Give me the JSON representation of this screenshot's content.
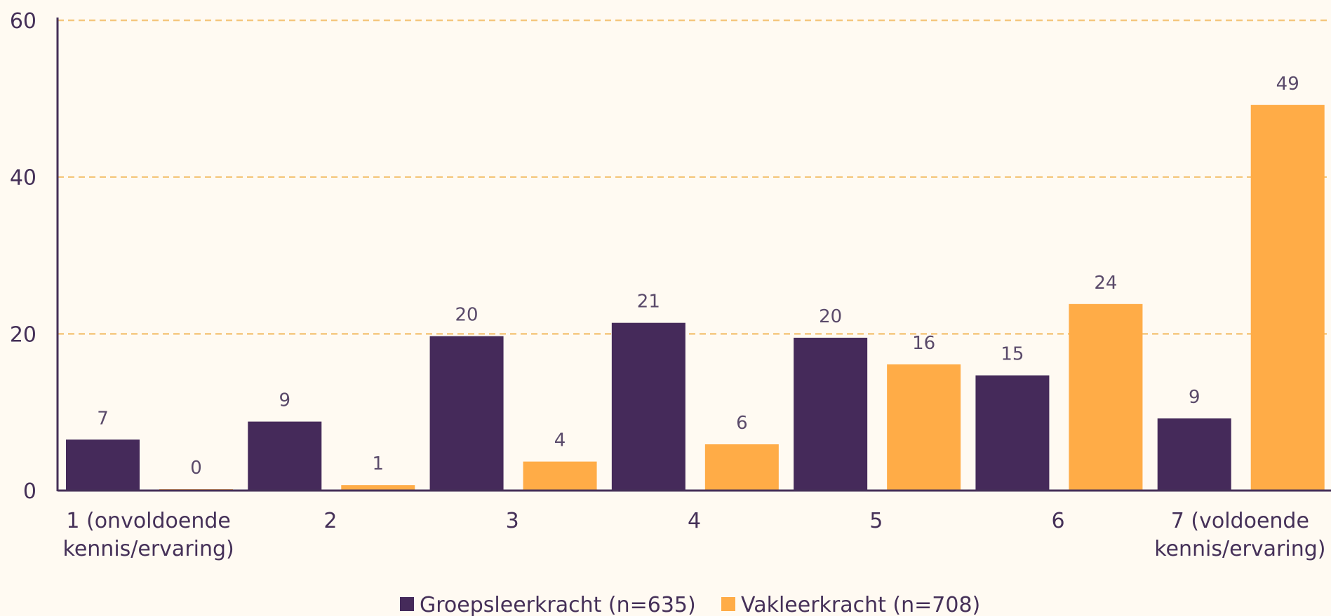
{
  "chart_data": {
    "type": "bar",
    "categories": [
      [
        "1 (onvoldoende",
        "kennis/ervaring)"
      ],
      [
        "2"
      ],
      [
        "3"
      ],
      [
        "4"
      ],
      [
        "5"
      ],
      [
        "6"
      ],
      [
        "7 (voldoende",
        "kennis/ervaring)"
      ]
    ],
    "series": [
      {
        "name": "Groepsleerkracht (n=635)",
        "color": "#452a5a",
        "values": [
          7,
          9,
          20,
          21,
          20,
          15,
          9
        ],
        "plot_values": [
          6.5,
          8.8,
          19.7,
          21.4,
          19.5,
          14.7,
          9.2
        ]
      },
      {
        "name": "Vakleerkracht (n=708)",
        "color": "#ffac47",
        "values": [
          0,
          1,
          4,
          6,
          16,
          24,
          49
        ],
        "plot_values": [
          0.1,
          0.7,
          3.7,
          5.9,
          16.1,
          23.8,
          49.2
        ]
      }
    ],
    "y_ticks": [
      "0",
      "20",
      "40",
      "60"
    ],
    "ylim": [
      0,
      60
    ],
    "grid": true,
    "grid_color": "#f5c77e",
    "axis_color": "#453058",
    "legend_position": "bottom"
  }
}
